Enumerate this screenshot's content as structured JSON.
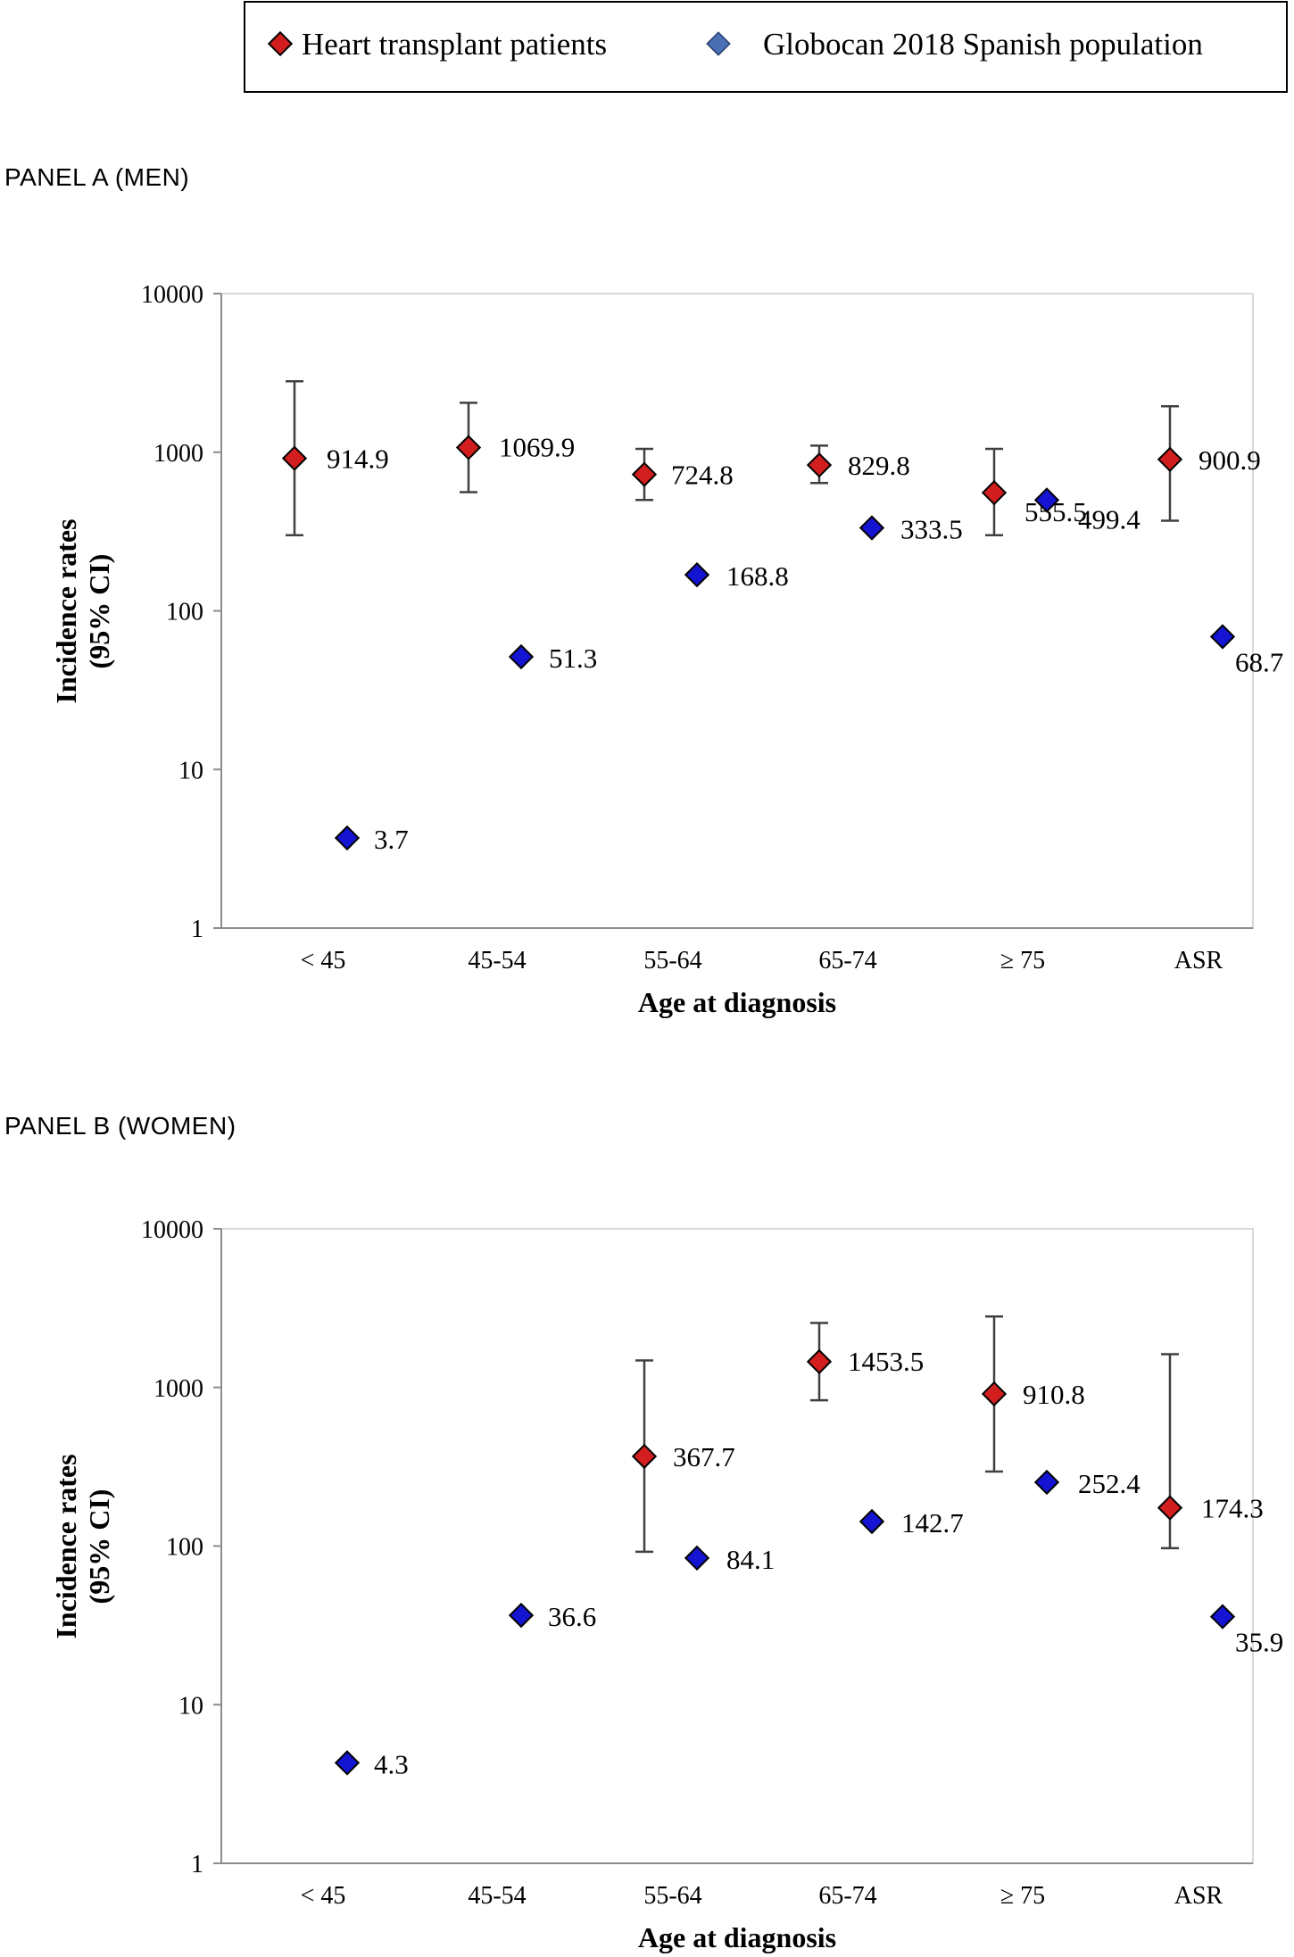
{
  "legend": {
    "items": [
      {
        "label": "Heart transplant patients",
        "color": "#d21e1e"
      },
      {
        "label": "Globocan 2018 Spanish population",
        "color": "#4a6fb5"
      }
    ]
  },
  "chart_data": [
    {
      "type": "scatter",
      "title": "PANEL A (MEN)",
      "xlabel": "Age at diagnosis",
      "ylabel": [
        "Incidence rates",
        "(95% CI)"
      ],
      "yscale": "log",
      "ylim": [
        1,
        10000
      ],
      "yticks": [
        1,
        10,
        100,
        1000,
        10000
      ],
      "categories": [
        "< 45",
        "45-54",
        "55-64",
        "65-74",
        "≥ 75",
        "ASR"
      ],
      "series": [
        {
          "name": "Heart transplant patients",
          "color": "#d21e1e",
          "values": [
            914.9,
            1069.9,
            724.8,
            829.8,
            555.5,
            900.9
          ],
          "labels": [
            "914.9",
            "1069.9",
            "724.8",
            "829.8",
            "555.5",
            "900.9"
          ],
          "ci_low": [
            300,
            560,
            500,
            640,
            300,
            370
          ],
          "ci_high": [
            2800,
            2050,
            1050,
            1100,
            1050,
            1950
          ]
        },
        {
          "name": "Globocan 2018 Spanish population",
          "color": "#1414d2",
          "values": [
            3.7,
            51.3,
            168.8,
            333.5,
            499.4,
            68.7
          ],
          "labels": [
            "3.7",
            "51.3",
            "168.8",
            "333.5",
            "499.4",
            "68.7"
          ]
        }
      ]
    },
    {
      "type": "scatter",
      "title": "PANEL B (WOMEN)",
      "xlabel": "Age at diagnosis",
      "ylabel": [
        "Incidence rates",
        "(95% CI)"
      ],
      "yscale": "log",
      "ylim": [
        1,
        10000
      ],
      "yticks": [
        1,
        10,
        100,
        1000,
        10000
      ],
      "categories": [
        "< 45",
        "45-54",
        "55-64",
        "65-74",
        "≥ 75",
        "ASR"
      ],
      "series": [
        {
          "name": "Heart transplant patients",
          "color": "#d21e1e",
          "values": [
            null,
            null,
            367.7,
            1453.5,
            910.8,
            174.3
          ],
          "labels": [
            "",
            "",
            "367.7",
            "1453.5",
            "910.8",
            "174.3"
          ],
          "ci_low": [
            null,
            null,
            92,
            830,
            295,
            97
          ],
          "ci_high": [
            null,
            null,
            1480,
            2550,
            2800,
            1620
          ]
        },
        {
          "name": "Globocan 2018 Spanish population",
          "color": "#1414d2",
          "values": [
            4.3,
            36.6,
            84.1,
            142.7,
            252.4,
            35.9
          ],
          "labels": [
            "4.3",
            "36.6",
            "84.1",
            "142.7",
            "252.4",
            "35.9"
          ]
        }
      ]
    }
  ]
}
